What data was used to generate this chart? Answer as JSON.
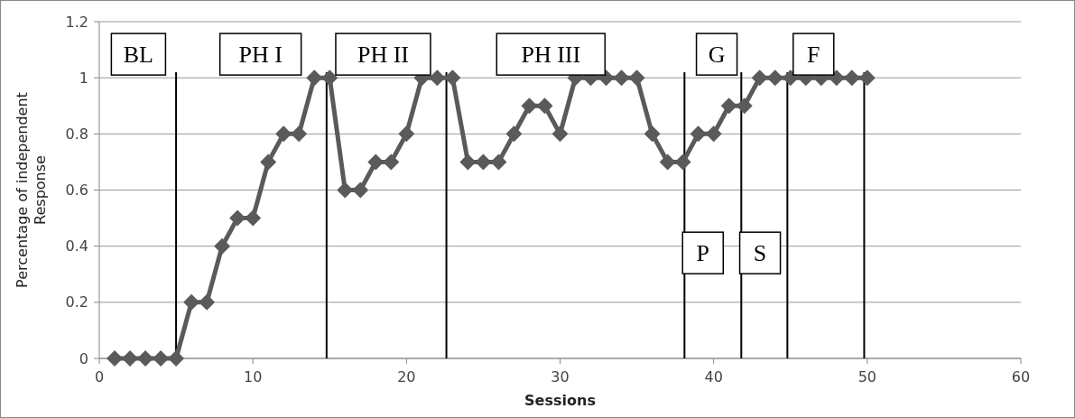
{
  "chart_data": {
    "type": "line",
    "xlabel": "Sessions",
    "ylabel": "Percentage of independent Response",
    "x": [
      1,
      2,
      3,
      4,
      5,
      6,
      7,
      8,
      9,
      10,
      11,
      12,
      13,
      14,
      15,
      16,
      17,
      18,
      19,
      20,
      21,
      22,
      23,
      24,
      25,
      26,
      27,
      28,
      29,
      30,
      31,
      32,
      33,
      34,
      35,
      36,
      37,
      38,
      39,
      40,
      41,
      42,
      43,
      44,
      45,
      46,
      47,
      48,
      49,
      50
    ],
    "series": [
      {
        "color": "#5a5a5a",
        "values": [
          0,
          0,
          0,
          0,
          0,
          0.2,
          0.2,
          0.4,
          0.5,
          0.5,
          0.7,
          0.8,
          0.8,
          1,
          1,
          0.6,
          0.6,
          0.7,
          0.7,
          0.8,
          1,
          1,
          1,
          0.7,
          0.7,
          0.7,
          0.8,
          0.9,
          0.9,
          0.8,
          1,
          1,
          1,
          1,
          1,
          0.8,
          0.7,
          0.7,
          0.8,
          0.8,
          0.9,
          0.9,
          1,
          1,
          1,
          1,
          1,
          1,
          1,
          1
        ]
      }
    ],
    "xlim": [
      0,
      60
    ],
    "xticks": [
      0,
      10,
      20,
      30,
      40,
      50,
      60
    ],
    "ylim": [
      0,
      1.2
    ],
    "yticks": [
      0,
      0.2,
      0.4,
      0.6,
      0.8,
      1,
      1.2
    ],
    "grid": "y",
    "marker": "diamond",
    "line_style": "solid",
    "ref_lines": [
      {
        "axis": "x",
        "value": 5,
        "color": "#000000"
      },
      {
        "axis": "x",
        "value": 14.8,
        "color": "#000000"
      },
      {
        "axis": "x",
        "value": 22.6,
        "color": "#000000"
      },
      {
        "axis": "x",
        "value": 38.1,
        "color": "#000000"
      },
      {
        "axis": "x",
        "value": 41.8,
        "color": "#000000"
      },
      {
        "axis": "x",
        "value": 44.8,
        "color": "#000000"
      },
      {
        "axis": "x",
        "value": 49.8,
        "color": "#000000"
      }
    ],
    "annotations": [
      "BL",
      "PH I",
      "PH II",
      "PH III",
      "G",
      "F",
      "P",
      "S"
    ]
  }
}
